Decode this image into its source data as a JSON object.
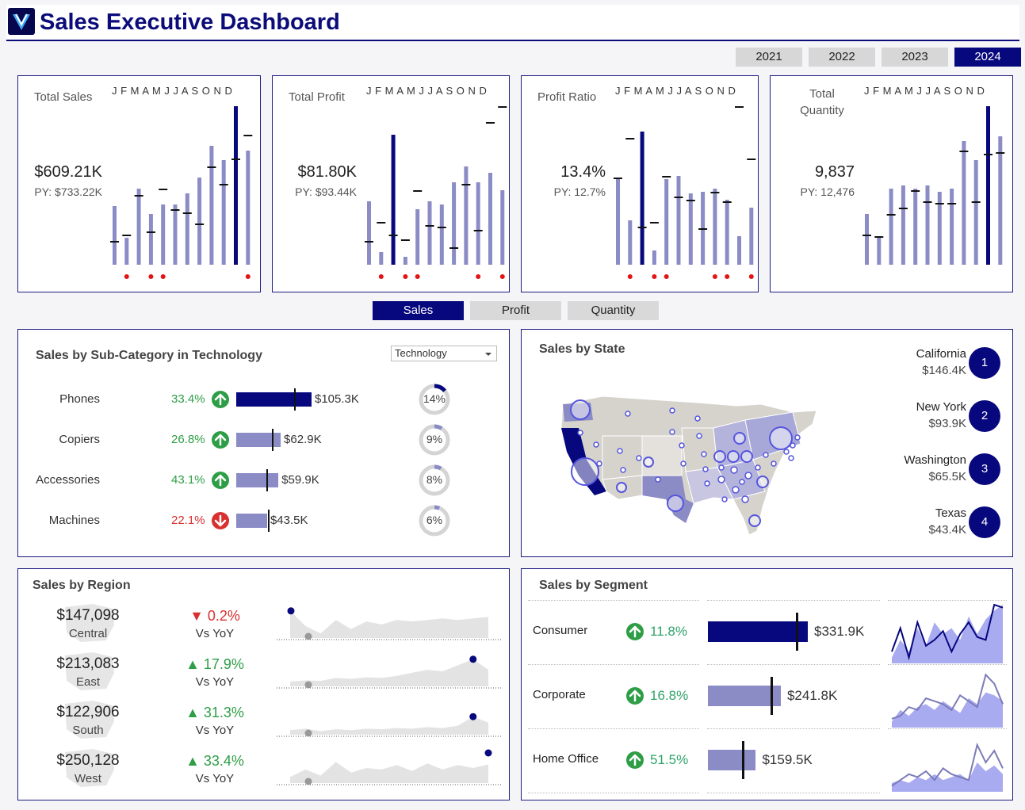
{
  "header": {
    "title": "Sales Executive Dashboard",
    "logo": "v-logo-icon"
  },
  "years": [
    "2021",
    "2022",
    "2023",
    "2024"
  ],
  "active_year": "2024",
  "months_label": "J F M A M J J A S O N D",
  "kpis": [
    {
      "label": "Total Sales",
      "value": "$609.21K",
      "py": "PY: $733.22K",
      "bars": [
        0.37,
        0.17,
        0.48,
        0.32,
        0.38,
        0.38,
        0.45,
        0.55,
        0.75,
        0.66,
        1.0,
        0.72
      ],
      "marks": [
        0.15,
        0.19,
        0.44,
        0.21,
        0.48,
        0.35,
        0.33,
        0.26,
        0.62,
        0.51,
        0.67,
        0.82
      ],
      "highlight": 10,
      "flags": [
        1,
        3,
        4,
        11
      ]
    },
    {
      "label": "Total Profit",
      "value": "$81.80K",
      "py": "PY: $93.44K",
      "bars": [
        0.4,
        0.08,
        0.82,
        0.05,
        0.35,
        0.4,
        0.38,
        0.52,
        0.62,
        0.52,
        0.58,
        0.47
      ],
      "marks": [
        0.15,
        0.27,
        0.19,
        0.16,
        0.47,
        0.25,
        0.24,
        0.11,
        0.51,
        0.22,
        0.9,
        1.0
      ],
      "highlight": 2,
      "flags": [
        1,
        3,
        4,
        9,
        11
      ]
    },
    {
      "label": "Profit Ratio",
      "value": "13.4%",
      "py": "PY: 12.7%",
      "bars": [
        0.55,
        0.28,
        0.84,
        0.09,
        0.54,
        0.56,
        0.45,
        0.46,
        0.48,
        0.41,
        0.18,
        0.36
      ],
      "marks": [
        0.55,
        0.8,
        0.24,
        0.27,
        0.56,
        0.43,
        0.41,
        0.23,
        0.46,
        0.4,
        1.0,
        0.67
      ],
      "highlight": 2,
      "flags": [
        1,
        3,
        4,
        8,
        9,
        11
      ]
    },
    {
      "label": "Total Quantity",
      "value": "9,837",
      "py": "PY: 12,476",
      "bars": [
        0.32,
        0.18,
        0.48,
        0.5,
        0.48,
        0.5,
        0.46,
        0.48,
        0.78,
        0.66,
        1.0,
        0.81
      ],
      "marks": [
        0.19,
        0.18,
        0.32,
        0.36,
        0.47,
        0.4,
        0.39,
        0.39,
        0.72,
        0.4,
        0.7,
        0.71
      ],
      "highlight": 10,
      "flags": []
    }
  ],
  "tabs": [
    "Sales",
    "Profit",
    "Quantity"
  ],
  "active_tab": "Sales",
  "subcategory": {
    "title": "Sales by Sub-Category in Technology",
    "dropdown_value": "Technology",
    "rows": [
      {
        "name": "Phones",
        "pct": "33.4%",
        "dir": "up",
        "value": "$105.3K",
        "share": "14%",
        "share_frac": 0.14,
        "bar_frac": 1.0,
        "target_frac": 0.77
      },
      {
        "name": "Copiers",
        "pct": "26.8%",
        "dir": "up",
        "value": "$62.9K",
        "share": "9%",
        "share_frac": 0.09,
        "bar_frac": 0.59,
        "target_frac": 0.47
      },
      {
        "name": "Accessories",
        "pct": "43.1%",
        "dir": "up",
        "value": "$59.9K",
        "share": "8%",
        "share_frac": 0.08,
        "bar_frac": 0.56,
        "target_frac": 0.4
      },
      {
        "name": "Machines",
        "pct": "22.1%",
        "dir": "down",
        "value": "$43.5K",
        "share": "6%",
        "share_frac": 0.06,
        "bar_frac": 0.41,
        "target_frac": 0.42
      }
    ]
  },
  "state": {
    "title": "Sales by State",
    "ranks": [
      {
        "name": "California",
        "value": "$146.4K",
        "rank": "1"
      },
      {
        "name": "New York",
        "value": "$93.9K",
        "rank": "2"
      },
      {
        "name": "Washington",
        "value": "$65.5K",
        "rank": "3"
      },
      {
        "name": "Texas",
        "value": "$43.4K",
        "rank": "4"
      }
    ]
  },
  "region": {
    "title": "Sales by Region",
    "rows": [
      {
        "value": "$147,098",
        "name": "Central",
        "yoy": "0.2%",
        "dir": "down",
        "sub": "Vs YoY",
        "spark": [
          0.9,
          0.4,
          0.15,
          0.6,
          0.3,
          0.55,
          0.45,
          0.6,
          0.55,
          0.6,
          0.65,
          0.6,
          0.65,
          0.7
        ],
        "first_dot": 0.9,
        "last_idx": 0
      },
      {
        "value": "$213,083",
        "name": "East",
        "yoy": "17.9%",
        "dir": "up",
        "sub": "Vs YoY",
        "spark": [
          0.15,
          0.2,
          0.18,
          0.28,
          0.25,
          0.3,
          0.28,
          0.35,
          0.45,
          0.55,
          0.5,
          0.7,
          0.9,
          0.55
        ],
        "first_dot": 0.15,
        "last_idx": 12
      },
      {
        "value": "$122,906",
        "name": "South",
        "yoy": "31.3%",
        "dir": "up",
        "sub": "Vs YoY",
        "spark": [
          0.15,
          0.2,
          0.12,
          0.18,
          0.15,
          0.2,
          0.18,
          0.22,
          0.2,
          0.25,
          0.22,
          0.3,
          0.6,
          0.4
        ],
        "first_dot": 0.15,
        "last_idx": 12
      },
      {
        "value": "$250,128",
        "name": "West",
        "yoy": "33.4%",
        "dir": "up",
        "sub": "Vs YoY",
        "spark": [
          0.2,
          0.45,
          0.25,
          0.7,
          0.35,
          0.5,
          0.45,
          0.6,
          0.4,
          0.65,
          0.45,
          0.6,
          0.5,
          0.62
        ],
        "first_dot": 0.2,
        "last_idx": 13
      }
    ]
  },
  "segment": {
    "title": "Sales by Segment",
    "rows": [
      {
        "name": "Consumer",
        "pct": "11.8%",
        "value": "$331.9K",
        "bar_frac": 1.0,
        "target_frac": 0.88,
        "dark": true,
        "area": [
          0.1,
          0.4,
          0.2,
          0.6,
          0.3,
          0.7,
          0.5,
          0.6,
          0.4,
          0.8,
          0.5,
          0.75,
          0.9,
          1.0
        ],
        "line": [
          0.2,
          0.6,
          0.1,
          0.7,
          0.3,
          0.4,
          0.55,
          0.2,
          0.5,
          0.7,
          0.45,
          0.4,
          1.0,
          0.95
        ]
      },
      {
        "name": "Corporate",
        "pct": "16.8%",
        "value": "$241.8K",
        "bar_frac": 0.73,
        "target_frac": 0.63,
        "dark": false,
        "area": [
          0.1,
          0.3,
          0.2,
          0.35,
          0.4,
          0.3,
          0.45,
          0.35,
          0.25,
          0.5,
          0.4,
          0.6,
          0.55,
          0.45
        ],
        "line": [
          0.15,
          0.2,
          0.35,
          0.3,
          0.5,
          0.45,
          0.4,
          0.3,
          0.55,
          0.45,
          0.35,
          0.9,
          0.75,
          0.4
        ]
      },
      {
        "name": "Home Office",
        "pct": "51.5%",
        "value": "$159.5K",
        "bar_frac": 0.48,
        "target_frac": 0.34,
        "dark": false,
        "area": [
          0.15,
          0.2,
          0.15,
          0.25,
          0.2,
          0.3,
          0.2,
          0.25,
          0.3,
          0.2,
          0.5,
          0.35,
          0.45,
          0.3
        ],
        "line": [
          0.1,
          0.2,
          0.3,
          0.25,
          0.35,
          0.2,
          0.4,
          0.3,
          0.25,
          0.2,
          0.8,
          0.5,
          0.7,
          0.4
        ]
      }
    ]
  },
  "colors": {
    "navy": "#07077e",
    "bar": "#8b8bc6",
    "light": "#a9abf0",
    "green": "#2e9e46",
    "red": "#d93030",
    "flag": "#e31414"
  }
}
